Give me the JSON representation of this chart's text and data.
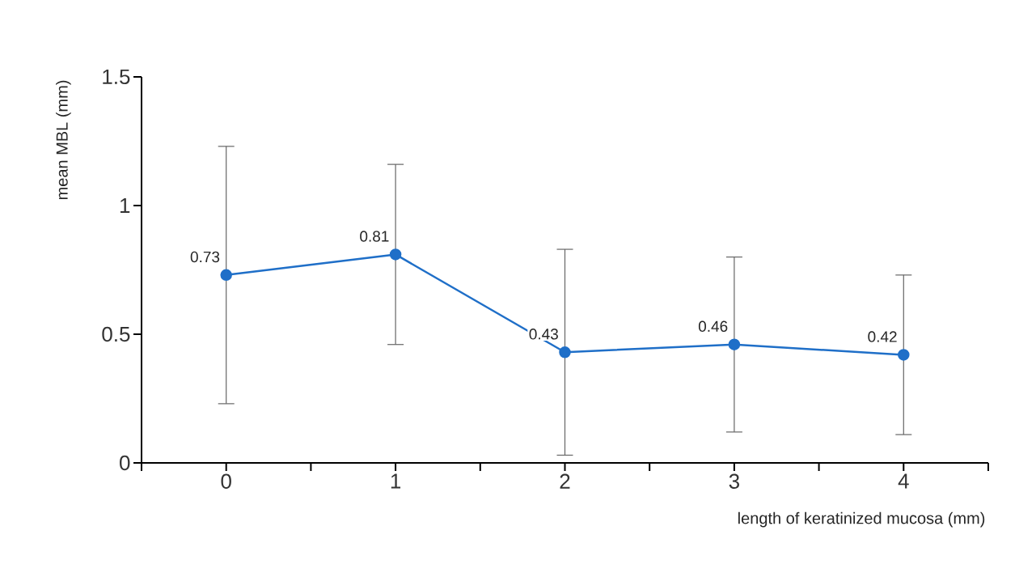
{
  "chart_data": {
    "type": "line",
    "xlabel": "length of keratinized mucosa (mm)",
    "ylabel": "mean MBL (mm)",
    "x": [
      0,
      1,
      2,
      3,
      4
    ],
    "values": [
      0.73,
      0.81,
      0.43,
      0.46,
      0.42
    ],
    "errors": [
      0.5,
      0.35,
      0.4,
      0.34,
      0.31
    ],
    "color": "#1f6fc8",
    "marker": "circle",
    "data_labels": true,
    "grid": false,
    "xlim": [
      -0.5,
      4.5
    ],
    "xticks": [
      {
        "value": -0.5,
        "label": null
      },
      0,
      {
        "value": 0.5,
        "label": null
      },
      1,
      {
        "value": 1.5,
        "label": null
      },
      2,
      {
        "value": 2.5,
        "label": null
      },
      3,
      {
        "value": 3.5,
        "label": null
      },
      4,
      {
        "value": 4.5,
        "label": null
      }
    ],
    "ylim": [
      0,
      1.5
    ],
    "yticks": [
      0,
      0.5,
      1,
      1.5
    ]
  }
}
